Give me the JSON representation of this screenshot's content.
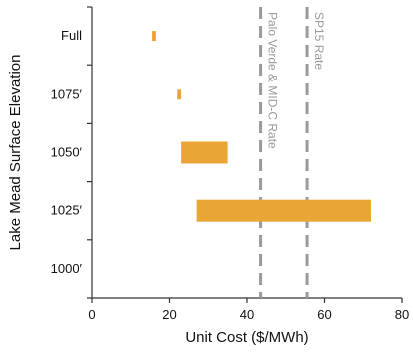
{
  "chart_data": {
    "type": "bar",
    "orientation": "horizontal-floating",
    "title": "",
    "xlabel": "Unit Cost ($/MWh)",
    "ylabel": "Lake Mead Surface Elevation",
    "xlim": [
      0,
      80
    ],
    "xticks": [
      0,
      20,
      40,
      60,
      80
    ],
    "categories": [
      "Full",
      "1075′",
      "1050′",
      "1025′",
      "1000′"
    ],
    "ranges": [
      {
        "category": "Full",
        "low": 15.5,
        "high": 16.5
      },
      {
        "category": "1075′",
        "low": 22,
        "high": 23
      },
      {
        "category": "1050′",
        "low": 23,
        "high": 35
      },
      {
        "category": "1025′",
        "low": 27,
        "high": 72
      },
      {
        "category": "1000′",
        "low": null,
        "high": null
      }
    ],
    "reference_lines": [
      {
        "label": "Palo Verde & MID-C Rate",
        "x": 43.5
      },
      {
        "label": "SP15 Rate",
        "x": 55.5
      }
    ],
    "grid": false,
    "legend": "none",
    "colors": {
      "bar": "#E9A535",
      "reference": "#9a9a9a",
      "axis": "#333333"
    }
  }
}
